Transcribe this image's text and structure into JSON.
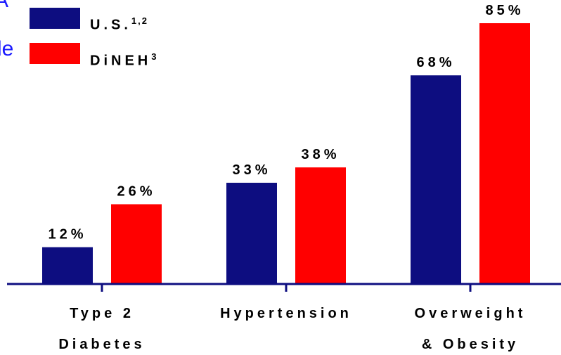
{
  "clipped_text": {
    "top": "A",
    "middle": "le"
  },
  "chart_data": {
    "type": "bar",
    "categories": [
      {
        "line1": "Type 2",
        "line2": "Diabetes"
      },
      {
        "line1": "Hypertension",
        "line2": ""
      },
      {
        "line1": "Overweight",
        "line2": "& Obesity"
      }
    ],
    "series": [
      {
        "name": "U.S.",
        "superscript": "1,2",
        "color": "#0d0d80",
        "values": [
          12,
          33,
          68
        ],
        "labels": [
          "12%",
          "33%",
          "68%"
        ]
      },
      {
        "name": "DiNEH",
        "superscript": "3",
        "color": "#ff0000",
        "values": [
          26,
          38,
          85
        ],
        "labels": [
          "26%",
          "38%",
          "85%"
        ]
      }
    ],
    "ylim": [
      0,
      85
    ],
    "axis_color": "#0d0d80",
    "legend_position": "top-left",
    "grid": false
  }
}
